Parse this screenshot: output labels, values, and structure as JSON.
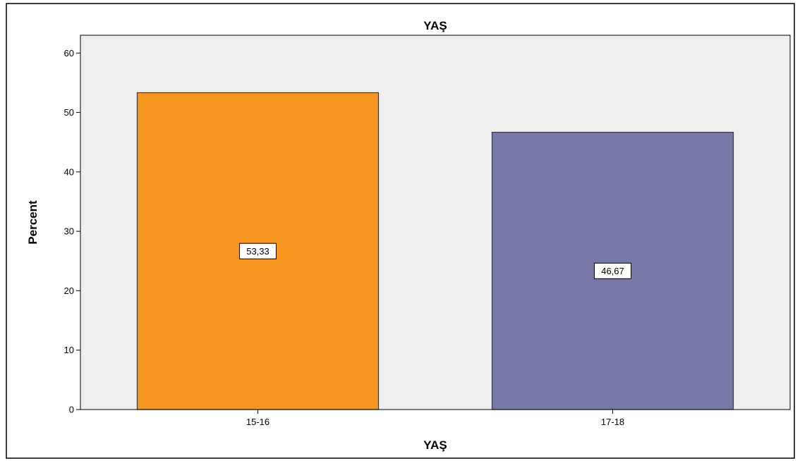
{
  "chart_data": {
    "type": "bar",
    "title": "YAŞ",
    "xlabel": "YAŞ",
    "ylabel": "Percent",
    "categories": [
      "15-16",
      "17-18"
    ],
    "values": [
      53.33,
      46.67
    ],
    "data_labels": [
      "53,33",
      "46,67"
    ],
    "ylim": [
      0,
      63
    ],
    "yticks": [
      0,
      10,
      20,
      30,
      40,
      50,
      60
    ],
    "grid": false,
    "legend": "none",
    "colors": {
      "plot_background": "#efefef",
      "bar_fills": [
        "#f7961e",
        "#7878a8"
      ],
      "bar_stroke": "#3a3a3a",
      "axis": "#000000"
    }
  }
}
